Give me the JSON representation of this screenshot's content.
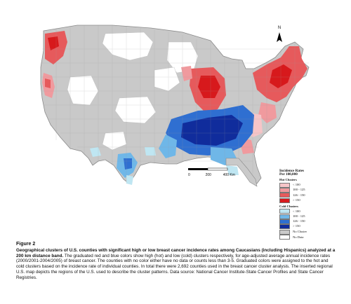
{
  "legend": {
    "title_line1": "Incidence Rates",
    "title_line2": "Per 100,000",
    "hot_title": "Hot Clusters",
    "hot_items": [
      {
        "label": "< 100",
        "color": "#f6c5c8"
      },
      {
        "label": "100 - 125",
        "color": "#f09a9e"
      },
      {
        "label": "126 - 150",
        "color": "#e65a5c"
      },
      {
        "label": "> 150",
        "color": "#d7191c"
      }
    ],
    "cold_title": "Cold Clusters",
    "cold_items": [
      {
        "label": "< 100",
        "color": "#bfe6f2"
      },
      {
        "label": "100 - 125",
        "color": "#6fb7e8"
      },
      {
        "label": "126 - 150",
        "color": "#2f6fd1"
      },
      {
        "label": "> 150",
        "color": "#102c9c"
      }
    ],
    "other_items": [
      {
        "label": "No Cluster",
        "color": "#c9c9c9"
      },
      {
        "label": "No Data",
        "color": "#ffffff"
      }
    ]
  },
  "scale": {
    "label0": "0",
    "label1": "200",
    "label2": "400 Km"
  },
  "north": {
    "label": "N",
    "icon": "north-arrow"
  },
  "caption": {
    "figure": "Figure 2",
    "title": "Geographical clusters of U.S. counties with significant high or low breast cancer incidence rates among Caucasians (including Hispanics) analyzed at a 200 km distance band.",
    "body": "The graduated red and blue colors show high (hot) and low (cold) clusters respectively, for age-adjusted average annual incidence rates (2000/2001-2004/2005) of breast cancer. The counties with no color either have no data or counts less than 3-5. Graduated colors were assigned to the hot and cold clusters based on the incidence rate of individual counties. In total there were 2,692 counties used in the breast cancer cluster analysis. The inserted regional U.S. map depicts the regions of the U.S. used to describe the cluster patterns. Data source: National Cancer Institute-State Cancer Profiles and State Cancer Registries."
  }
}
